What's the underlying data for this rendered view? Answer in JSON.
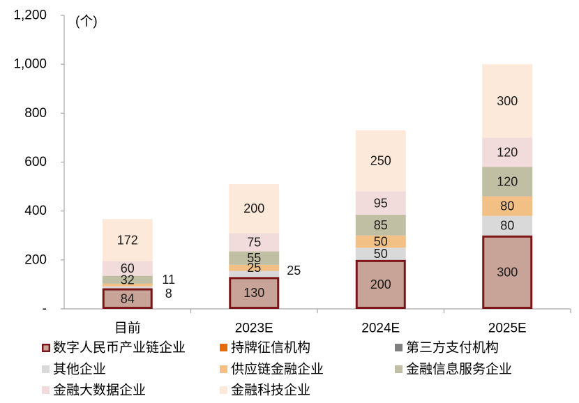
{
  "chart_data": {
    "type": "bar",
    "stacked": true,
    "title": "",
    "xlabel": "",
    "ylabel": "(个)",
    "categories": [
      "目前",
      "2023E",
      "2024E",
      "2025E"
    ],
    "ylim": [
      0,
      1200
    ],
    "yticks": [
      0,
      200,
      400,
      600,
      800,
      1000,
      1200
    ],
    "ytick_labels": [
      "-",
      "200",
      "400",
      "600",
      "800",
      "1,000",
      "1,200"
    ],
    "legend_position": "bottom",
    "series": [
      {
        "name": "数字人民币产业链企业",
        "color": "#c8a397",
        "border": "#7b1518",
        "values": [
          84,
          130,
          200,
          300
        ]
      },
      {
        "name": "持牌征信机构",
        "color": "#e46c0a",
        "values": [
          null,
          null,
          null,
          null
        ]
      },
      {
        "name": "第三方支付机构",
        "color": "#7f7f7f",
        "values": [
          null,
          null,
          null,
          null
        ]
      },
      {
        "name": "其他企业",
        "color": "#d9d9d9",
        "values": [
          8,
          25,
          50,
          80
        ]
      },
      {
        "name": "供应链金融企业",
        "color": "#f2bf85",
        "values": [
          11,
          25,
          50,
          80
        ]
      },
      {
        "name": "金融信息服务企业",
        "color": "#c1bfa3",
        "values": [
          32,
          55,
          85,
          120
        ]
      },
      {
        "name": "金融大数据企业",
        "color": "#f2dcdb",
        "values": [
          60,
          75,
          95,
          120
        ]
      },
      {
        "name": "金融科技企业",
        "color": "#fde9d9",
        "values": [
          172,
          200,
          250,
          300
        ]
      }
    ]
  }
}
